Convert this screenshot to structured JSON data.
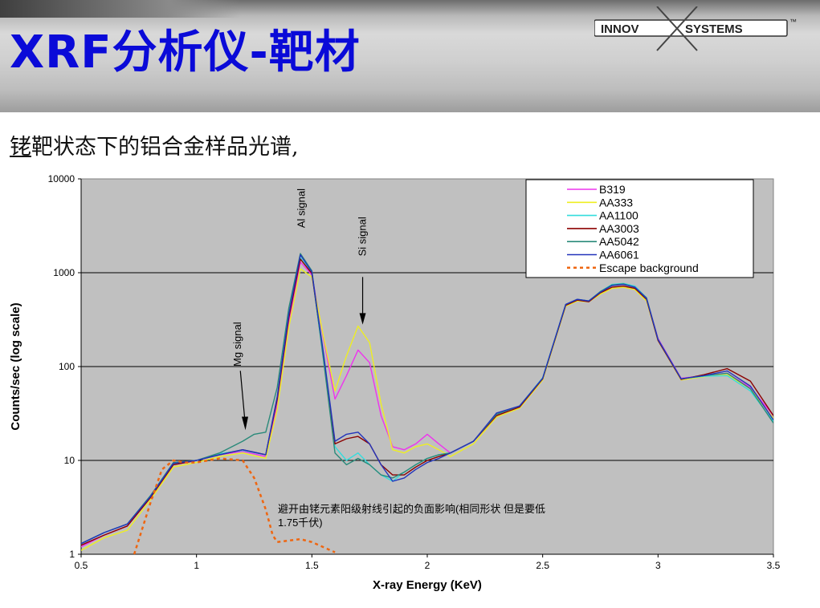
{
  "slide": {
    "title": "XRF分析仪-靶材",
    "subtitle_underlined": "铑",
    "subtitle_rest": "靶状态下的铝合金样品光谱,",
    "logo_left": "INNOV",
    "logo_right": "SYSTEMS",
    "logo_tm": "™"
  },
  "chart_data": {
    "type": "line",
    "xlabel": "X-ray Energy (KeV)",
    "ylabel": "Counts/sec (log scale)",
    "xlim": [
      0.5,
      3.5
    ],
    "ylim": [
      1,
      10000
    ],
    "yscale": "log",
    "grid": "horizontal",
    "background": "#c0c0c0",
    "x_ticks": [
      "0.5",
      "1",
      "1.5",
      "2",
      "2.5",
      "3",
      "3.5"
    ],
    "y_ticks": [
      "1",
      "10",
      "100",
      "1000",
      "10000"
    ],
    "legend_position": "top-right",
    "annotations": [
      {
        "text": "Al signal",
        "x": 1.48,
        "y": 3000
      },
      {
        "text": "Si signal",
        "x": 1.72,
        "y": 1500
      },
      {
        "text": "Mg signal",
        "x": 1.2,
        "y": 100
      },
      {
        "text": "避开由铑元素阳级射线引起的负面影响(相同形状 但是要低",
        "x": 1.85,
        "y": 3.0
      },
      {
        "text": "1.75千伏)",
        "x": 1.5,
        "y": 2.0
      }
    ],
    "series": [
      {
        "name": "B319",
        "color": "#ee33ee",
        "dash": false,
        "x": [
          0.5,
          0.6,
          0.7,
          0.8,
          0.9,
          1.0,
          1.1,
          1.2,
          1.3,
          1.35,
          1.4,
          1.45,
          1.5,
          1.55,
          1.6,
          1.65,
          1.7,
          1.75,
          1.8,
          1.85,
          1.9,
          1.95,
          2.0,
          2.05,
          2.1,
          2.2,
          2.3,
          2.4,
          2.5,
          2.6,
          2.65,
          2.7,
          2.75,
          2.8,
          2.85,
          2.9,
          2.95,
          3.0,
          3.1,
          3.2,
          3.3,
          3.4,
          3.5
        ],
        "y": [
          1.2,
          1.6,
          2.0,
          4.0,
          9.0,
          10.0,
          11.5,
          12.5,
          11.0,
          40,
          300,
          1300,
          950,
          200,
          45,
          80,
          150,
          110,
          30,
          14,
          13,
          15,
          19,
          15,
          12,
          16,
          30,
          37,
          75,
          450,
          510,
          500,
          620,
          740,
          760,
          720,
          540,
          200,
          75,
          80,
          85,
          60,
          30
        ]
      },
      {
        "name": "AA333",
        "color": "#eeee22",
        "dash": false,
        "x": [
          0.5,
          0.6,
          0.7,
          0.8,
          0.9,
          1.0,
          1.1,
          1.2,
          1.3,
          1.35,
          1.4,
          1.45,
          1.5,
          1.55,
          1.6,
          1.65,
          1.7,
          1.75,
          1.8,
          1.85,
          1.9,
          1.95,
          2.0,
          2.05,
          2.1,
          2.2,
          2.3,
          2.4,
          2.5,
          2.6,
          2.65,
          2.7,
          2.75,
          2.8,
          2.85,
          2.9,
          2.95,
          3.0,
          3.1,
          3.2,
          3.3,
          3.4,
          3.5
        ],
        "y": [
          1.1,
          1.5,
          1.8,
          3.8,
          8.5,
          9.5,
          11.0,
          12.0,
          10.5,
          35,
          260,
          1100,
          900,
          210,
          55,
          130,
          270,
          180,
          40,
          13,
          12,
          14,
          15,
          13,
          11,
          15,
          29,
          36,
          72,
          440,
          500,
          490,
          590,
          680,
          700,
          660,
          500,
          190,
          72,
          78,
          82,
          58,
          28
        ]
      },
      {
        "name": "AA1100",
        "color": "#33dddd",
        "dash": false,
        "x": [
          0.5,
          0.6,
          0.7,
          0.8,
          0.9,
          1.0,
          1.1,
          1.2,
          1.3,
          1.35,
          1.4,
          1.45,
          1.5,
          1.55,
          1.6,
          1.65,
          1.7,
          1.75,
          1.8,
          1.85,
          1.9,
          1.95,
          2.0,
          2.05,
          2.1,
          2.2,
          2.3,
          2.4,
          2.5,
          2.6,
          2.65,
          2.7,
          2.75,
          2.8,
          2.85,
          2.9,
          2.95,
          3.0,
          3.1,
          3.2,
          3.3,
          3.4,
          3.5
        ],
        "y": [
          1.3,
          1.7,
          2.1,
          4.1,
          9.2,
          10.0,
          11.8,
          12.8,
          11.5,
          45,
          340,
          1450,
          1000,
          120,
          14,
          10,
          12,
          9.0,
          7.0,
          6.0,
          7.5,
          9.0,
          10.5,
          11.5,
          12,
          16,
          31,
          38,
          76,
          460,
          520,
          500,
          630,
          750,
          770,
          720,
          540,
          195,
          74,
          79,
          80,
          55,
          26
        ]
      },
      {
        "name": "AA3003",
        "color": "#8b0000",
        "dash": false,
        "x": [
          0.5,
          0.6,
          0.7,
          0.8,
          0.9,
          1.0,
          1.1,
          1.2,
          1.3,
          1.35,
          1.4,
          1.45,
          1.5,
          1.55,
          1.6,
          1.65,
          1.7,
          1.75,
          1.8,
          1.85,
          1.9,
          1.95,
          2.0,
          2.05,
          2.1,
          2.2,
          2.3,
          2.4,
          2.5,
          2.6,
          2.65,
          2.7,
          2.75,
          2.8,
          2.85,
          2.9,
          2.95,
          3.0,
          3.1,
          3.2,
          3.3,
          3.4,
          3.5
        ],
        "y": [
          1.25,
          1.6,
          2.0,
          4.0,
          9.0,
          10.0,
          11.5,
          13.0,
          11.5,
          45,
          330,
          1400,
          980,
          130,
          15,
          17,
          18,
          15,
          9.0,
          7.0,
          7.0,
          8.5,
          10.0,
          11.0,
          12,
          16,
          30,
          37,
          74,
          450,
          510,
          490,
          610,
          700,
          720,
          680,
          520,
          190,
          73,
          82,
          95,
          70,
          30
        ]
      },
      {
        "name": "AA5042",
        "color": "#2a8a7a",
        "dash": false,
        "x": [
          0.5,
          0.6,
          0.7,
          0.8,
          0.9,
          1.0,
          1.1,
          1.2,
          1.25,
          1.3,
          1.35,
          1.4,
          1.45,
          1.5,
          1.55,
          1.6,
          1.65,
          1.7,
          1.75,
          1.8,
          1.85,
          1.9,
          1.95,
          2.0,
          2.05,
          2.1,
          2.2,
          2.3,
          2.4,
          2.5,
          2.6,
          2.65,
          2.7,
          2.75,
          2.8,
          2.85,
          2.9,
          2.95,
          3.0,
          3.1,
          3.2,
          3.3,
          3.4,
          3.5
        ],
        "y": [
          1.3,
          1.7,
          2.1,
          4.2,
          9.5,
          10.0,
          12.0,
          16.0,
          19.0,
          20.0,
          60,
          420,
          1600,
          1050,
          120,
          12,
          9.0,
          10.5,
          9.0,
          7.0,
          6.5,
          7.5,
          9.0,
          10.5,
          11.5,
          12,
          16,
          31,
          38,
          75,
          460,
          520,
          500,
          630,
          740,
          760,
          700,
          540,
          195,
          74,
          80,
          85,
          58,
          25
        ]
      },
      {
        "name": "AA6061",
        "color": "#2233bb",
        "dash": false,
        "x": [
          0.5,
          0.6,
          0.7,
          0.8,
          0.9,
          1.0,
          1.1,
          1.2,
          1.3,
          1.35,
          1.4,
          1.45,
          1.5,
          1.55,
          1.6,
          1.65,
          1.7,
          1.75,
          1.8,
          1.85,
          1.9,
          1.95,
          2.0,
          2.05,
          2.1,
          2.2,
          2.3,
          2.4,
          2.5,
          2.6,
          2.65,
          2.7,
          2.75,
          2.8,
          2.85,
          2.9,
          2.95,
          3.0,
          3.1,
          3.2,
          3.3,
          3.4,
          3.5
        ],
        "y": [
          1.3,
          1.7,
          2.1,
          4.1,
          9.3,
          10.0,
          11.5,
          13.0,
          11.5,
          48,
          360,
          1550,
          1020,
          140,
          16,
          19,
          20,
          15,
          9.0,
          6.0,
          6.5,
          8.0,
          9.5,
          10.5,
          12,
          16,
          32,
          38,
          75,
          460,
          520,
          500,
          620,
          730,
          750,
          700,
          530,
          195,
          74,
          80,
          90,
          62,
          27
        ]
      },
      {
        "name": "Escape background",
        "color": "#ee6611",
        "dash": true,
        "x": [
          0.73,
          0.8,
          0.85,
          0.9,
          0.95,
          1.0,
          1.1,
          1.2,
          1.25,
          1.3,
          1.33,
          1.35,
          1.4,
          1.45,
          1.5,
          1.6
        ],
        "y": [
          1.0,
          3.5,
          8.0,
          10.0,
          9.5,
          9.5,
          10.5,
          10.0,
          6.5,
          3.0,
          1.6,
          1.35,
          1.4,
          1.45,
          1.35,
          1.05
        ]
      }
    ]
  }
}
